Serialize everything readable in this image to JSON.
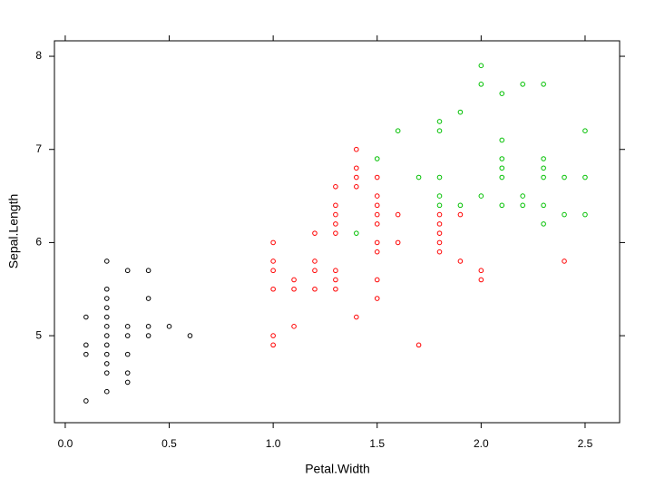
{
  "chart_data": {
    "type": "scatter",
    "x_label": "Petal.Width",
    "y_label": "Sepal.Length",
    "xlim": [
      -0.052,
      2.666
    ],
    "ylim": [
      4.066,
      8.166
    ],
    "xticks": [
      {
        "value": 0,
        "label": "0.0"
      },
      0.5,
      {
        "value": 1,
        "label": "1.0"
      },
      1.5,
      {
        "value": 2,
        "label": "2.0"
      },
      2.5
    ],
    "yticks": [
      5,
      6,
      7,
      8
    ],
    "series": [
      {
        "color": "#000000",
        "x": [
          0.1,
          0.1,
          0.1,
          0.1,
          0.2,
          0.2,
          0.2,
          0.2,
          0.2,
          0.2,
          0.2,
          0.2,
          0.2,
          0.2,
          0.2,
          0.2,
          0.3,
          0.3,
          0.3,
          0.3,
          0.3,
          0.3,
          0.4,
          0.4,
          0.4,
          0.4,
          0.5,
          0.6
        ],
        "values": [
          5.2,
          4.9,
          4.8,
          4.3,
          5.8,
          5.5,
          5.4,
          5.3,
          5.2,
          5.1,
          5.0,
          4.9,
          4.8,
          4.7,
          4.6,
          4.4,
          5.7,
          5.1,
          5.0,
          4.8,
          4.6,
          4.5,
          5.7,
          5.4,
          5.1,
          5.0,
          5.1,
          5.0
        ]
      },
      {
        "color": "#ff0000",
        "x": [
          1.0,
          1.0,
          1.0,
          1.0,
          1.0,
          1.0,
          1.1,
          1.1,
          1.1,
          1.2,
          1.2,
          1.2,
          1.2,
          1.3,
          1.3,
          1.3,
          1.3,
          1.3,
          1.3,
          1.3,
          1.3,
          1.4,
          1.4,
          1.4,
          1.4,
          1.4,
          1.5,
          1.5,
          1.5,
          1.5,
          1.5,
          1.5,
          1.5,
          1.5,
          1.5,
          1.6,
          1.6,
          1.7,
          1.8,
          1.8,
          1.8,
          1.8,
          1.8,
          1.9,
          1.9,
          2.0,
          2.0,
          2.4
        ],
        "values": [
          6.0,
          5.8,
          5.7,
          5.5,
          5.0,
          4.9,
          5.6,
          5.5,
          5.1,
          6.1,
          5.8,
          5.7,
          5.5,
          6.6,
          6.4,
          6.3,
          6.2,
          6.1,
          5.7,
          5.6,
          5.5,
          7.0,
          6.8,
          6.7,
          6.6,
          5.2,
          6.7,
          6.5,
          6.4,
          6.3,
          6.2,
          6.0,
          5.9,
          5.6,
          5.4,
          6.3,
          6.0,
          4.9,
          6.3,
          6.2,
          6.1,
          6.0,
          5.9,
          6.3,
          5.8,
          5.7,
          5.6,
          5.8
        ]
      },
      {
        "color": "#00c000",
        "x": [
          1.4,
          1.5,
          1.6,
          1.7,
          1.8,
          1.8,
          1.8,
          1.8,
          1.8,
          1.9,
          1.9,
          2.0,
          2.0,
          2.0,
          2.1,
          2.1,
          2.1,
          2.1,
          2.1,
          2.1,
          2.2,
          2.2,
          2.2,
          2.3,
          2.3,
          2.3,
          2.3,
          2.3,
          2.3,
          2.4,
          2.4,
          2.5,
          2.5,
          2.5
        ],
        "values": [
          6.1,
          6.9,
          7.2,
          6.7,
          7.3,
          7.2,
          6.7,
          6.5,
          6.4,
          7.4,
          6.4,
          7.9,
          7.7,
          6.5,
          7.6,
          7.1,
          6.9,
          6.8,
          6.7,
          6.4,
          7.7,
          6.5,
          6.4,
          7.7,
          6.9,
          6.8,
          6.7,
          6.4,
          6.2,
          6.7,
          6.3,
          7.2,
          6.7,
          6.3
        ]
      }
    ]
  }
}
